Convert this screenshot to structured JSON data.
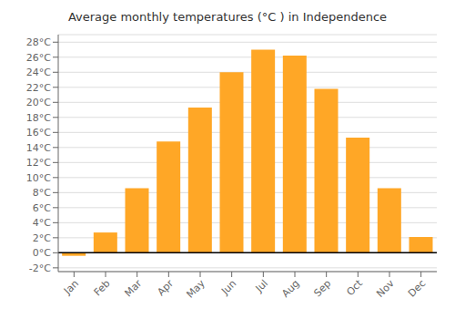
{
  "chart_data": {
    "type": "bar",
    "title": "Average monthly temperatures (°C ) in Independence",
    "categories": [
      "Jan",
      "Feb",
      "Mar",
      "Apr",
      "May",
      "Jun",
      "Jul",
      "Aug",
      "Sep",
      "Oct",
      "Nov",
      "Dec"
    ],
    "values": [
      -0.4,
      2.7,
      8.6,
      14.8,
      19.3,
      24.0,
      27.0,
      26.2,
      21.8,
      15.3,
      8.6,
      2.1
    ],
    "color": "#FFA726",
    "ylim": [
      -2.5,
      29
    ],
    "yticks": [
      {
        "value": -2,
        "label": "-2°C"
      },
      {
        "value": 0,
        "label": "0°C"
      },
      {
        "value": 2,
        "label": "2°C"
      },
      {
        "value": 4,
        "label": "4°C"
      },
      {
        "value": 6,
        "label": "6°C"
      },
      {
        "value": 8,
        "label": "8°C"
      },
      {
        "value": 10,
        "label": "10°C"
      },
      {
        "value": 12,
        "label": "12°C"
      },
      {
        "value": 14,
        "label": "14°C"
      },
      {
        "value": 16,
        "label": "16°C"
      },
      {
        "value": 18,
        "label": "18°C"
      },
      {
        "value": 20,
        "label": "20°C"
      },
      {
        "value": 22,
        "label": "22°C"
      },
      {
        "value": 24,
        "label": "24°C"
      },
      {
        "value": 26,
        "label": "26°C"
      },
      {
        "value": 28,
        "label": "28°C"
      }
    ],
    "grid": true
  }
}
